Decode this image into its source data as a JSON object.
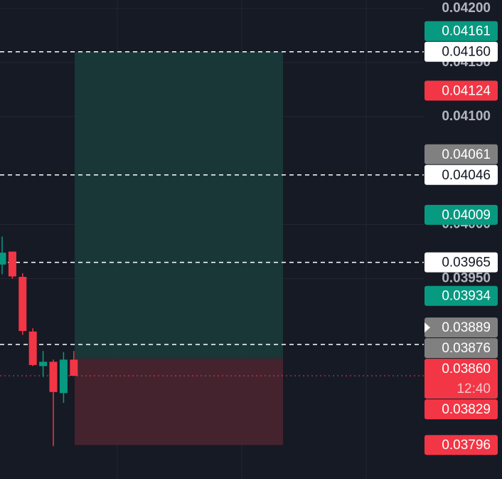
{
  "chart_data": {
    "type": "candlestick",
    "ylim": [
      0.037645,
      0.042079
    ],
    "yticks": [
      {
        "value": 0.042,
        "label": "0.04200"
      },
      {
        "value": 0.0415,
        "label": "0.04150"
      },
      {
        "value": 0.041,
        "label": "0.04100"
      },
      {
        "value": 0.04,
        "label": "0.04000"
      },
      {
        "value": 0.0395,
        "label": "0.03950"
      }
    ],
    "grid": true,
    "up_color": "#089981",
    "down_color": "#f23645",
    "candles": [
      {
        "o": 0.03963,
        "h": 0.03989,
        "l": 0.03954,
        "c": 0.03974
      },
      {
        "o": 0.03975,
        "h": 0.03975,
        "l": 0.0395,
        "c": 0.03952
      },
      {
        "o": 0.039516,
        "h": 0.03955,
        "l": 0.03898,
        "c": 0.039015
      },
      {
        "o": 0.03901,
        "h": 0.03904,
        "l": 0.03869,
        "c": 0.0387
      },
      {
        "o": 0.03869,
        "h": 0.03883,
        "l": 0.03859,
        "c": 0.03873
      },
      {
        "o": 0.03873,
        "h": 0.03875,
        "l": 0.03795,
        "c": 0.03845
      },
      {
        "o": 0.03844,
        "h": 0.03882,
        "l": 0.03835,
        "c": 0.03875
      },
      {
        "o": 0.03875,
        "h": 0.03883,
        "l": 0.0386,
        "c": 0.0386
      }
    ],
    "position": {
      "entry": 0.03876,
      "target": 0.0416,
      "stop": 0.03796,
      "profit_color": "#1a3b3a",
      "loss_color": "#4a2530"
    },
    "markers": [
      {
        "value": 0.04161,
        "label": "0.04161",
        "color": "#089981",
        "text_color": "#ffffff"
      },
      {
        "value": 0.0416,
        "label": "0.04160",
        "color": "#ffffff",
        "text_color": "#131722",
        "line": "dashed"
      },
      {
        "value": 0.04124,
        "label": "0.04124",
        "color": "#f23645",
        "text_color": "#ffffff"
      },
      {
        "value": 0.04061,
        "label": "0.04061",
        "color": "#808080",
        "text_color": "#ffffff"
      },
      {
        "value": 0.04046,
        "label": "0.04046",
        "color": "#ffffff",
        "text_color": "#131722",
        "line": "dashed"
      },
      {
        "value": 0.04009,
        "label": "0.04009",
        "color": "#089981",
        "text_color": "#ffffff"
      },
      {
        "value": 0.03965,
        "label": "0.03965",
        "color": "#ffffff",
        "text_color": "#131722",
        "line": "dashed"
      },
      {
        "value": 0.03934,
        "label": "0.03934",
        "color": "#089981",
        "text_color": "#ffffff"
      },
      {
        "value": 0.03889,
        "label": "0.03889",
        "color": "#808080",
        "text_color": "#ffffff",
        "line": "dashed"
      },
      {
        "value": 0.03876,
        "label": "0.03876",
        "color": "#808080",
        "text_color": "#ffffff"
      },
      {
        "value": 0.0386,
        "label": "0.03860",
        "color": "#f23645",
        "text_color": "#ffffff",
        "line": "dotted",
        "countdown": "12:40"
      },
      {
        "value": 0.03829,
        "label": "0.03829",
        "color": "#f23645",
        "text_color": "#ffffff"
      },
      {
        "value": 0.03796,
        "label": "0.03796",
        "color": "#f23645",
        "text_color": "#ffffff"
      }
    ]
  }
}
